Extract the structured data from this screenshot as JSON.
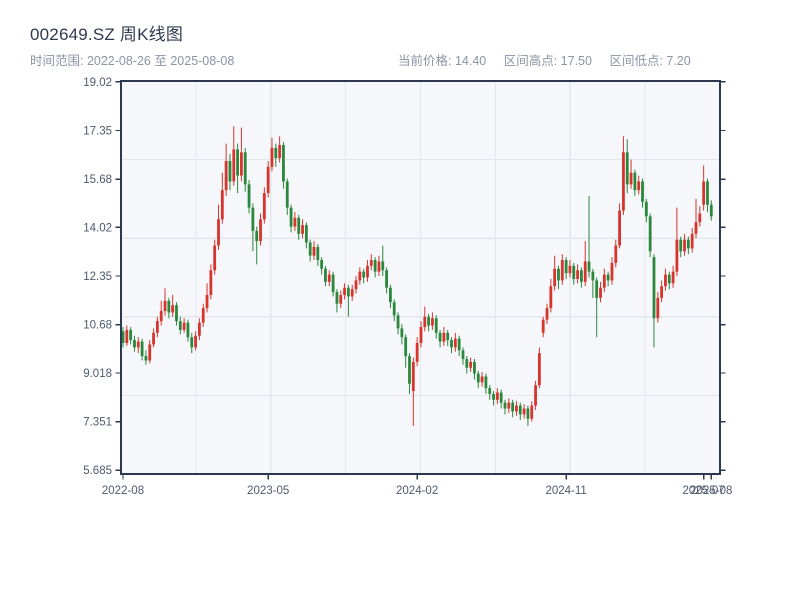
{
  "header": {
    "title": "002649.SZ 周K线图",
    "time_range": "时间范围: 2022-08-26 至 2025-08-08",
    "stats": {
      "current_price": "当前价格: 14.40",
      "range_high": "区间高点: 17.50",
      "range_low": "区间低点: 7.20"
    }
  },
  "chart_data": {
    "type": "candlestick",
    "title": "002649.SZ 周K线图",
    "period": "weekly",
    "date_start": "2022-08-26",
    "date_end": "2025-08-08",
    "current_price": 14.4,
    "range_high": 17.5,
    "range_low": 7.2,
    "ylim": [
      5.55,
      19.05
    ],
    "y_ticks": [
      {
        "value": 19.02,
        "label": "19.02"
      },
      {
        "value": 17.35,
        "label": "17.35"
      },
      {
        "value": 15.68,
        "label": "15.68"
      },
      {
        "value": 14.02,
        "label": "14.02"
      },
      {
        "value": 12.35,
        "label": "12.35"
      },
      {
        "value": 10.68,
        "label": "10.68"
      },
      {
        "value": 9.018,
        "label": "9.018"
      },
      {
        "value": 7.351,
        "label": "7.351"
      },
      {
        "value": 5.685,
        "label": "5.685"
      }
    ],
    "x_ticks": [
      {
        "week": 0,
        "label": "2022-08"
      },
      {
        "week": 38,
        "label": "2023-05"
      },
      {
        "week": 77,
        "label": "2024-02"
      },
      {
        "week": 116,
        "label": "2024-11"
      },
      {
        "week": 152,
        "label": "2025-07"
      },
      {
        "week": 154,
        "label": "2025-08"
      }
    ],
    "grid": {
      "vertical_divisions": 8,
      "horizontal_divisions": 5
    },
    "colors": {
      "up": "#d7342e",
      "down": "#2b873c",
      "plot_bg": "#f5f7fa",
      "grid": "#e3e7ec",
      "spine": "#2b3950",
      "tick_label": "#4d5a6e"
    },
    "ohlc_legend": "each week = [open, high, low, close]",
    "weeks": [
      [
        10.45,
        10.6,
        9.9,
        10.05
      ],
      [
        10.05,
        10.65,
        9.95,
        10.5
      ],
      [
        10.5,
        10.6,
        10.0,
        10.15
      ],
      [
        10.15,
        10.3,
        9.75,
        9.9
      ],
      [
        9.9,
        10.25,
        9.7,
        10.1
      ],
      [
        10.1,
        10.2,
        9.45,
        9.6
      ],
      [
        9.6,
        9.8,
        9.3,
        9.45
      ],
      [
        9.45,
        10.15,
        9.35,
        10.0
      ],
      [
        10.0,
        10.55,
        9.9,
        10.4
      ],
      [
        10.4,
        10.95,
        10.25,
        10.8
      ],
      [
        10.8,
        11.5,
        10.65,
        11.15
      ],
      [
        11.15,
        11.93,
        11.0,
        11.5
      ],
      [
        11.5,
        11.6,
        10.9,
        11.1
      ],
      [
        11.1,
        11.7,
        10.95,
        11.35
      ],
      [
        11.35,
        11.45,
        10.65,
        10.8
      ],
      [
        10.8,
        10.95,
        10.35,
        10.5
      ],
      [
        10.5,
        10.9,
        10.4,
        10.75
      ],
      [
        10.75,
        10.85,
        10.1,
        10.25
      ],
      [
        10.25,
        10.4,
        9.7,
        9.9
      ],
      [
        9.9,
        10.45,
        9.8,
        10.3
      ],
      [
        10.3,
        10.9,
        10.15,
        10.75
      ],
      [
        10.75,
        11.4,
        10.6,
        11.25
      ],
      [
        11.25,
        12.1,
        11.1,
        11.7
      ],
      [
        11.7,
        12.75,
        11.55,
        12.55
      ],
      [
        12.55,
        13.6,
        12.4,
        13.4
      ],
      [
        13.4,
        14.8,
        13.25,
        14.3
      ],
      [
        14.3,
        15.9,
        14.15,
        15.3
      ],
      [
        15.3,
        16.9,
        15.1,
        16.3
      ],
      [
        16.3,
        16.55,
        15.3,
        15.6
      ],
      [
        15.6,
        17.5,
        15.45,
        16.7
      ],
      [
        16.7,
        16.9,
        15.2,
        15.8
      ],
      [
        15.8,
        17.45,
        15.6,
        16.6
      ],
      [
        16.6,
        16.75,
        15.25,
        15.5
      ],
      [
        15.5,
        15.65,
        14.5,
        14.7
      ],
      [
        14.7,
        14.85,
        13.2,
        13.9
      ],
      [
        13.9,
        14.05,
        12.75,
        13.55
      ],
      [
        13.55,
        14.5,
        13.4,
        14.3
      ],
      [
        14.3,
        15.4,
        14.15,
        15.2
      ],
      [
        15.2,
        16.3,
        15.05,
        16.1
      ],
      [
        16.1,
        17.1,
        15.95,
        16.75
      ],
      [
        16.75,
        16.9,
        16.1,
        16.4
      ],
      [
        16.4,
        17.15,
        16.25,
        16.85
      ],
      [
        16.85,
        16.95,
        15.35,
        15.6
      ],
      [
        15.6,
        15.7,
        14.45,
        14.7
      ],
      [
        14.7,
        14.8,
        13.85,
        14.05
      ],
      [
        14.05,
        14.55,
        13.9,
        14.35
      ],
      [
        14.35,
        14.45,
        13.6,
        13.8
      ],
      [
        13.8,
        14.3,
        13.65,
        14.1
      ],
      [
        14.1,
        14.2,
        13.3,
        13.5
      ],
      [
        13.5,
        13.6,
        12.85,
        13.05
      ],
      [
        13.05,
        13.55,
        12.9,
        13.35
      ],
      [
        13.35,
        13.45,
        12.7,
        12.9
      ],
      [
        12.9,
        13.0,
        12.4,
        12.6
      ],
      [
        12.6,
        12.7,
        12.0,
        12.15
      ],
      [
        12.15,
        12.55,
        12.0,
        12.4
      ],
      [
        12.4,
        12.5,
        11.65,
        11.8
      ],
      [
        11.8,
        11.9,
        11.1,
        11.4
      ],
      [
        11.4,
        11.85,
        11.25,
        11.7
      ],
      [
        11.7,
        12.1,
        11.55,
        11.95
      ],
      [
        11.95,
        12.05,
        10.95,
        11.65
      ],
      [
        11.65,
        12.05,
        11.5,
        11.9
      ],
      [
        11.9,
        12.35,
        11.75,
        12.2
      ],
      [
        12.2,
        12.65,
        12.05,
        12.5
      ],
      [
        12.5,
        12.6,
        12.1,
        12.3
      ],
      [
        12.3,
        12.9,
        12.15,
        12.7
      ],
      [
        12.7,
        13.1,
        12.55,
        12.9
      ],
      [
        12.9,
        13.0,
        12.3,
        12.5
      ],
      [
        12.5,
        13.05,
        12.35,
        12.85
      ],
      [
        12.85,
        13.4,
        12.35,
        12.55
      ],
      [
        12.55,
        12.65,
        11.75,
        11.95
      ],
      [
        11.95,
        12.05,
        11.25,
        11.45
      ],
      [
        11.45,
        11.55,
        10.8,
        11.0
      ],
      [
        11.0,
        11.1,
        10.35,
        10.55
      ],
      [
        10.55,
        10.7,
        10.0,
        10.25
      ],
      [
        10.25,
        10.35,
        9.2,
        9.6
      ],
      [
        9.6,
        9.7,
        8.3,
        8.65
      ],
      [
        8.4,
        9.55,
        7.2,
        9.4
      ],
      [
        9.4,
        10.25,
        9.25,
        10.05
      ],
      [
        10.05,
        10.8,
        9.9,
        10.6
      ],
      [
        10.6,
        11.3,
        10.45,
        10.95
      ],
      [
        10.95,
        11.05,
        10.45,
        10.65
      ],
      [
        10.65,
        11.1,
        10.5,
        10.9
      ],
      [
        10.9,
        11.0,
        10.2,
        10.4
      ],
      [
        10.4,
        10.5,
        9.9,
        10.1
      ],
      [
        10.1,
        10.6,
        9.95,
        10.4
      ],
      [
        10.4,
        10.5,
        9.95,
        10.15
      ],
      [
        10.15,
        10.25,
        9.7,
        9.9
      ],
      [
        9.9,
        10.4,
        9.75,
        10.2
      ],
      [
        10.2,
        10.3,
        9.6,
        9.8
      ],
      [
        9.8,
        9.9,
        9.3,
        9.5
      ],
      [
        9.5,
        9.6,
        9.0,
        9.2
      ],
      [
        9.2,
        9.55,
        9.05,
        9.4
      ],
      [
        9.4,
        9.5,
        8.8,
        9.0
      ],
      [
        9.0,
        9.1,
        8.5,
        8.7
      ],
      [
        8.7,
        9.05,
        8.55,
        8.9
      ],
      [
        8.9,
        9.0,
        8.3,
        8.5
      ],
      [
        8.5,
        8.6,
        8.1,
        8.3
      ],
      [
        8.3,
        8.4,
        7.9,
        8.1
      ],
      [
        8.1,
        8.5,
        7.95,
        8.35
      ],
      [
        8.35,
        8.45,
        7.8,
        8.0
      ],
      [
        8.0,
        8.1,
        7.6,
        7.8
      ],
      [
        7.8,
        8.15,
        7.65,
        8.0
      ],
      [
        8.0,
        8.1,
        7.5,
        7.7
      ],
      [
        7.7,
        8.05,
        7.55,
        7.9
      ],
      [
        7.9,
        8.0,
        7.4,
        7.6
      ],
      [
        7.6,
        7.95,
        7.45,
        7.8
      ],
      [
        7.8,
        7.9,
        7.2,
        7.45
      ],
      [
        7.45,
        8.05,
        7.35,
        7.9
      ],
      [
        7.9,
        8.75,
        7.75,
        8.6
      ],
      [
        8.6,
        9.9,
        8.5,
        9.7
      ],
      [
        10.4,
        10.95,
        10.25,
        10.85
      ],
      [
        10.85,
        11.4,
        10.7,
        11.25
      ],
      [
        11.25,
        12.25,
        11.1,
        12.0
      ],
      [
        12.0,
        13.05,
        11.85,
        12.6
      ],
      [
        12.6,
        12.7,
        11.9,
        12.2
      ],
      [
        12.2,
        13.1,
        12.05,
        12.9
      ],
      [
        12.9,
        13.0,
        12.25,
        12.45
      ],
      [
        12.45,
        12.9,
        12.3,
        12.7
      ],
      [
        12.7,
        12.8,
        12.05,
        12.25
      ],
      [
        12.25,
        12.75,
        12.1,
        12.55
      ],
      [
        12.55,
        12.65,
        11.95,
        12.15
      ],
      [
        12.15,
        13.55,
        12.0,
        12.85
      ],
      [
        12.85,
        15.1,
        12.3,
        12.5
      ],
      [
        12.5,
        12.6,
        11.6,
        12.2
      ],
      [
        12.2,
        12.3,
        10.25,
        11.6
      ],
      [
        11.6,
        12.15,
        11.45,
        11.95
      ],
      [
        11.95,
        12.6,
        11.8,
        12.4
      ],
      [
        12.4,
        12.5,
        12.0,
        12.2
      ],
      [
        12.2,
        13.0,
        12.05,
        12.8
      ],
      [
        12.8,
        13.6,
        12.65,
        13.4
      ],
      [
        13.4,
        14.85,
        13.3,
        14.6
      ],
      [
        14.6,
        17.15,
        14.45,
        16.6
      ],
      [
        16.6,
        17.05,
        15.2,
        15.5
      ],
      [
        15.5,
        16.35,
        15.35,
        15.9
      ],
      [
        15.9,
        16.0,
        15.1,
        15.3
      ],
      [
        15.3,
        15.8,
        15.15,
        15.6
      ],
      [
        15.6,
        15.7,
        14.7,
        14.9
      ],
      [
        14.9,
        15.0,
        14.2,
        14.4
      ],
      [
        14.4,
        14.5,
        13.0,
        13.2
      ],
      [
        13.0,
        13.1,
        9.9,
        10.9
      ],
      [
        10.9,
        11.8,
        10.75,
        11.6
      ],
      [
        11.6,
        12.2,
        11.45,
        12.0
      ],
      [
        12.0,
        12.6,
        11.85,
        12.4
      ],
      [
        12.4,
        12.5,
        11.9,
        12.1
      ],
      [
        12.1,
        12.7,
        11.95,
        12.5
      ],
      [
        12.5,
        14.7,
        12.35,
        13.6
      ],
      [
        13.6,
        13.7,
        13.0,
        13.2
      ],
      [
        13.2,
        13.8,
        13.05,
        13.6
      ],
      [
        13.6,
        13.7,
        13.1,
        13.3
      ],
      [
        13.3,
        14.0,
        13.15,
        13.8
      ],
      [
        13.8,
        15.0,
        13.65,
        14.2
      ],
      [
        14.2,
        14.75,
        14.05,
        14.5
      ],
      [
        14.8,
        16.15,
        14.6,
        15.6
      ],
      [
        15.6,
        15.7,
        14.55,
        14.8
      ],
      [
        14.8,
        14.95,
        14.25,
        14.4
      ]
    ]
  }
}
